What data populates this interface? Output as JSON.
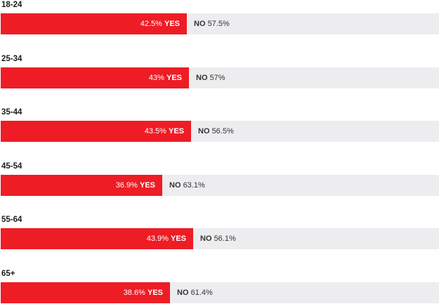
{
  "chart_data": {
    "type": "bar",
    "orientation": "horizontal-stacked-percent",
    "categories": [
      "18-24",
      "25-34",
      "35-44",
      "45-54",
      "55-64",
      "65+"
    ],
    "series": [
      {
        "name": "YES",
        "values": [
          42.5,
          43,
          43.5,
          36.9,
          43.9,
          38.6
        ]
      },
      {
        "name": "NO",
        "values": [
          57.5,
          57,
          56.5,
          63.1,
          56.1,
          61.4
        ]
      }
    ],
    "yes_labels": [
      "42.5%",
      "43%",
      "43.5%",
      "36.9%",
      "43.9%",
      "38.6%"
    ],
    "no_labels": [
      "57.5%",
      "57%",
      "56.5%",
      "63.1%",
      "56.1%",
      "61.4%"
    ],
    "xlim": [
      0,
      100
    ],
    "grid": false,
    "legend": "none",
    "colors": {
      "yes": "#ee1c25",
      "no": "#ededf0"
    }
  }
}
